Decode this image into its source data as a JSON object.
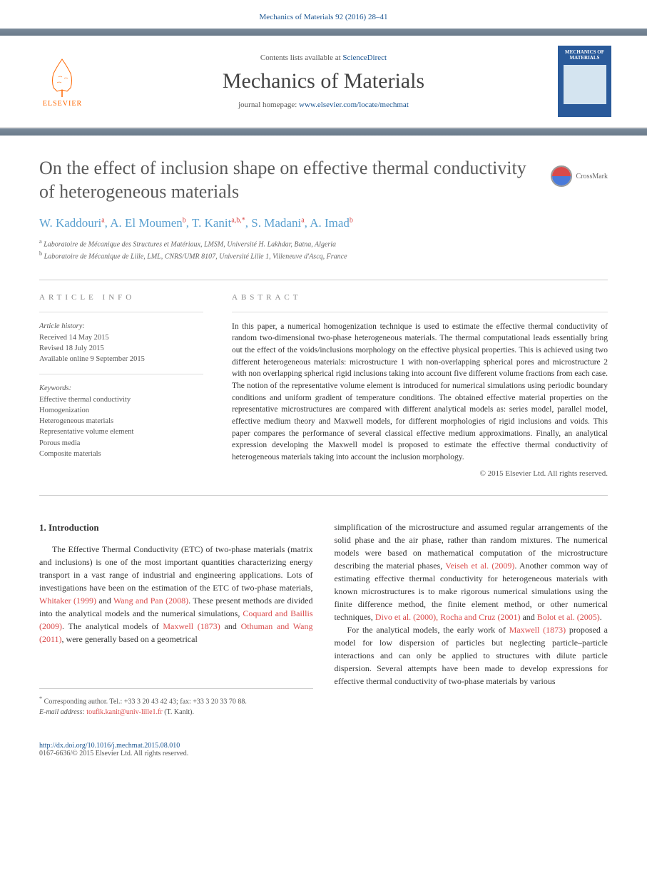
{
  "header": {
    "citation": "Mechanics of Materials 92 (2016) 28–41"
  },
  "banner": {
    "contents_prefix": "Contents lists available at ",
    "contents_link": "ScienceDirect",
    "journal_name": "Mechanics of Materials",
    "homepage_prefix": "journal homepage: ",
    "homepage_link": "www.elsevier.com/locate/mechmat",
    "publisher": "ELSEVIER",
    "cover_title": "MECHANICS OF MATERIALS"
  },
  "article": {
    "title": "On the effect of inclusion shape on effective thermal conductivity of heterogeneous materials",
    "crossmark": "CrossMark",
    "authors_html": "W. Kaddouri<sup>a</sup>, A. El Moumen<sup>b</sup>, T. Kanit<sup>a,b,*</sup>, S. Madani<sup>a</sup>, A. Imad<sup>b</sup>",
    "affiliations": [
      {
        "sup": "a",
        "text": "Laboratoire de Mécanique des Structures et Matériaux, LMSM, Université H. Lakhdar, Batna, Algeria"
      },
      {
        "sup": "b",
        "text": "Laboratoire de Mécanique de Lille, LML, CNRS/UMR 8107, Université Lille 1, Villeneuve d'Ascq, France"
      }
    ]
  },
  "info": {
    "label": "article info",
    "history_title": "Article history:",
    "history": [
      "Received 14 May 2015",
      "Revised 18 July 2015",
      "Available online 9 September 2015"
    ],
    "keywords_title": "Keywords:",
    "keywords": [
      "Effective thermal conductivity",
      "Homogenization",
      "Heterogeneous materials",
      "Representative volume element",
      "Porous media",
      "Composite materials"
    ]
  },
  "abstract": {
    "label": "abstract",
    "text": "In this paper, a numerical homogenization technique is used to estimate the effective thermal conductivity of random two-dimensional two-phase heterogeneous materials. The thermal computational leads essentially bring out the effect of the voids/inclusions morphology on the effective physical properties. This is achieved using two different heterogeneous materials: microstructure 1 with non-overlapping spherical pores and microstructure 2 with non overlapping spherical rigid inclusions taking into account five different volume fractions from each case. The notion of the representative volume element is introduced for numerical simulations using periodic boundary conditions and uniform gradient of temperature conditions. The obtained effective material properties on the representative microstructures are compared with different analytical models as: series model, parallel model, effective medium theory and Maxwell models, for different morphologies of rigid inclusions and voids. This paper compares the performance of several classical effective medium approximations. Finally, an analytical expression developing the Maxwell model is proposed to estimate the effective thermal conductivity of heterogeneous materials taking into account the inclusion morphology.",
    "copyright": "© 2015 Elsevier Ltd. All rights reserved."
  },
  "body": {
    "section_heading": "1. Introduction",
    "col1_p1_pre": "The Effective Thermal Conductivity (ETC) of two-phase materials (matrix and inclusions) is one of the most important quantities characterizing energy transport in a vast range of industrial and engineering applications. Lots of investigations have been on the estimation of the ETC of two-phase materials, ",
    "col1_ref1": "Whitaker (1999)",
    "col1_mid1": " and ",
    "col1_ref2": "Wang and Pan (2008)",
    "col1_p1_post": ". These present methods are divided into the analytical models and the numerical simulations, ",
    "col1_ref3": "Coquard and Baillis (2009)",
    "col1_p1_post2": ". The analytical models of ",
    "col1_ref4": "Maxwell (1873)",
    "col1_mid2": " and ",
    "col1_ref5": "Othuman and Wang (2011)",
    "col1_p1_end": ", were generally based on a geometrical",
    "col2_p1_pre": "simplification of the microstructure and assumed regular arrangements of the solid phase and the air phase, rather than random mixtures. The numerical models were based on mathematical computation of the microstructure describing the material phases, ",
    "col2_ref1": "Veiseh et al. (2009)",
    "col2_p1_mid": ". Another common way of estimating effective thermal conductivity for heterogeneous materials with known microstructures is to make rigorous numerical simulations using the finite difference method, the finite element method, or other numerical techniques, ",
    "col2_ref2": "Divo et al. (2000), Rocha and Cruz (2001)",
    "col2_mid2": " and ",
    "col2_ref3": "Bolot et al. (2005)",
    "col2_p1_end": ".",
    "col2_p2_pre": "For the analytical models, the early work of ",
    "col2_ref4": "Maxwell (1873)",
    "col2_p2_end": " proposed a model for low dispersion of particles but neglecting particle–particle interactions and can only be applied to structures with dilute particle dispersion. Several attempts have been made to develop expressions for effective thermal conductivity of two-phase materials by various"
  },
  "footnote": {
    "corr": "Corresponding author. Tel.: +33 3 20 43 42 43; fax: +33 3 20 33 70 88.",
    "email_label": "E-mail address: ",
    "email": "toufik.kanit@univ-lille1.fr",
    "email_name": " (T. Kanit)."
  },
  "footer": {
    "doi": "http://dx.doi.org/10.1016/j.mechmat.2015.08.010",
    "copyright": "0167-6636/© 2015 Elsevier Ltd. All rights reserved."
  }
}
